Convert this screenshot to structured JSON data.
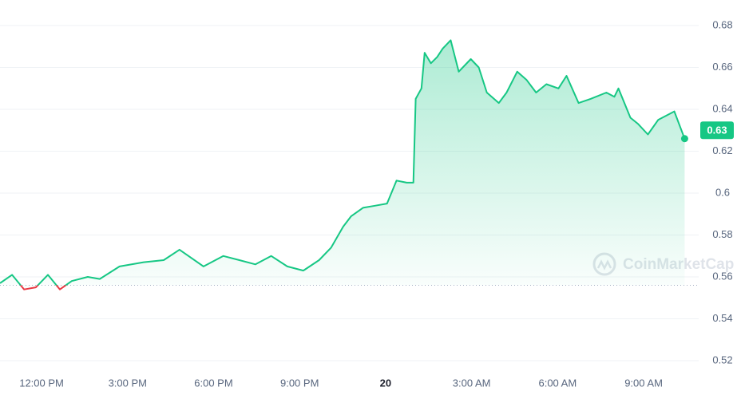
{
  "chart_data": {
    "type": "line",
    "x": [
      10.55,
      10.97,
      11.39,
      11.8,
      12.22,
      12.64,
      13.05,
      13.61,
      14.03,
      14.72,
      15.56,
      16.26,
      16.81,
      17.65,
      18.34,
      18.9,
      19.46,
      20.01,
      20.57,
      21.13,
      21.68,
      22.1,
      22.52,
      22.8,
      23.21,
      23.63,
      24.05,
      24.38,
      24.74,
      24.97,
      25.05,
      25.25,
      25.36,
      25.58,
      25.8,
      25.99,
      26.27,
      26.55,
      26.97,
      27.25,
      27.53,
      27.95,
      28.22,
      28.59,
      28.92,
      29.25,
      29.61,
      30.03,
      30.31,
      30.73,
      31.15,
      31.7,
      31.98,
      32.12,
      32.54,
      32.81,
      33.15,
      33.51,
      34.07,
      34.43
    ],
    "values": [
      0.557,
      0.561,
      0.554,
      0.555,
      0.561,
      0.554,
      0.558,
      0.56,
      0.559,
      0.565,
      0.567,
      0.568,
      0.573,
      0.565,
      0.57,
      0.568,
      0.566,
      0.57,
      0.565,
      0.563,
      0.568,
      0.574,
      0.584,
      0.589,
      0.593,
      0.594,
      0.595,
      0.606,
      0.605,
      0.605,
      0.645,
      0.65,
      0.667,
      0.662,
      0.665,
      0.669,
      0.673,
      0.658,
      0.664,
      0.66,
      0.648,
      0.643,
      0.648,
      0.658,
      0.654,
      0.648,
      0.652,
      0.65,
      0.656,
      0.643,
      0.645,
      0.648,
      0.646,
      0.65,
      0.636,
      0.633,
      0.628,
      0.635,
      0.639,
      0.626
    ],
    "color": "#16c784",
    "below_color": "#ea3943",
    "baseline": 0.556,
    "xlim": [
      10.55,
      34.92
    ],
    "xticks": [
      {
        "value": 12,
        "label": "12:00 PM"
      },
      {
        "value": 15,
        "label": "3:00 PM"
      },
      {
        "value": 18,
        "label": "6:00 PM"
      },
      {
        "value": 21,
        "label": "9:00 PM"
      },
      {
        "value": 24,
        "label": "20"
      },
      {
        "value": 27,
        "label": "3:00 AM"
      },
      {
        "value": 30,
        "label": "6:00 AM"
      },
      {
        "value": 33,
        "label": "9:00 AM"
      }
    ],
    "ylim": [
      0.52,
      0.68
    ],
    "yticks": [
      0.52,
      0.54,
      0.56,
      0.58,
      0.6,
      0.62,
      0.64,
      0.66,
      0.68
    ],
    "grid": true,
    "current_price": {
      "value": 0.63,
      "label": "0.63"
    },
    "watermark": "CoinMarketCap"
  }
}
